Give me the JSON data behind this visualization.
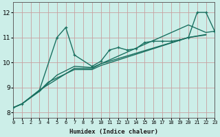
{
  "xlabel": "Humidex (Indice chaleur)",
  "xlim": [
    0,
    23
  ],
  "ylim": [
    7.8,
    12.4
  ],
  "yticks": [
    8,
    9,
    10,
    11,
    12
  ],
  "xticks": [
    0,
    1,
    2,
    3,
    4,
    5,
    6,
    7,
    8,
    9,
    10,
    11,
    12,
    13,
    14,
    15,
    16,
    17,
    18,
    19,
    20,
    21,
    22,
    23
  ],
  "bg_color": "#cceee8",
  "plot_bg_color": "#cceee8",
  "grid_color": "#c8a0a0",
  "line_color": "#1a7060",
  "line_width": 1.0,
  "lines": [
    {
      "x": [
        0,
        1,
        3,
        5,
        6,
        7,
        9,
        10,
        11,
        12,
        13,
        14,
        15,
        16,
        17,
        18,
        19,
        20,
        21,
        22,
        23
      ],
      "y": [
        8.2,
        8.35,
        8.9,
        11.0,
        11.4,
        10.3,
        9.85,
        10.05,
        10.5,
        10.6,
        10.5,
        10.55,
        10.8,
        10.85,
        10.85,
        10.85,
        10.9,
        11.0,
        12.0,
        12.0,
        11.25
      ],
      "markers": true
    },
    {
      "x": [
        0,
        1,
        3,
        5,
        7,
        9,
        10,
        20,
        22,
        23
      ],
      "y": [
        8.2,
        8.35,
        8.85,
        9.5,
        9.85,
        9.8,
        9.95,
        11.5,
        11.2,
        11.25
      ],
      "markers": false
    },
    {
      "x": [
        0,
        1,
        3,
        4,
        7,
        9,
        10,
        20,
        22
      ],
      "y": [
        8.2,
        8.35,
        8.87,
        9.22,
        9.72,
        9.72,
        9.88,
        11.0,
        11.1
      ],
      "markers": false
    },
    {
      "x": [
        0,
        1,
        3,
        7,
        9,
        10,
        20,
        22
      ],
      "y": [
        8.2,
        8.35,
        8.9,
        9.77,
        9.76,
        9.95,
        11.0,
        11.12
      ],
      "markers": false
    }
  ]
}
